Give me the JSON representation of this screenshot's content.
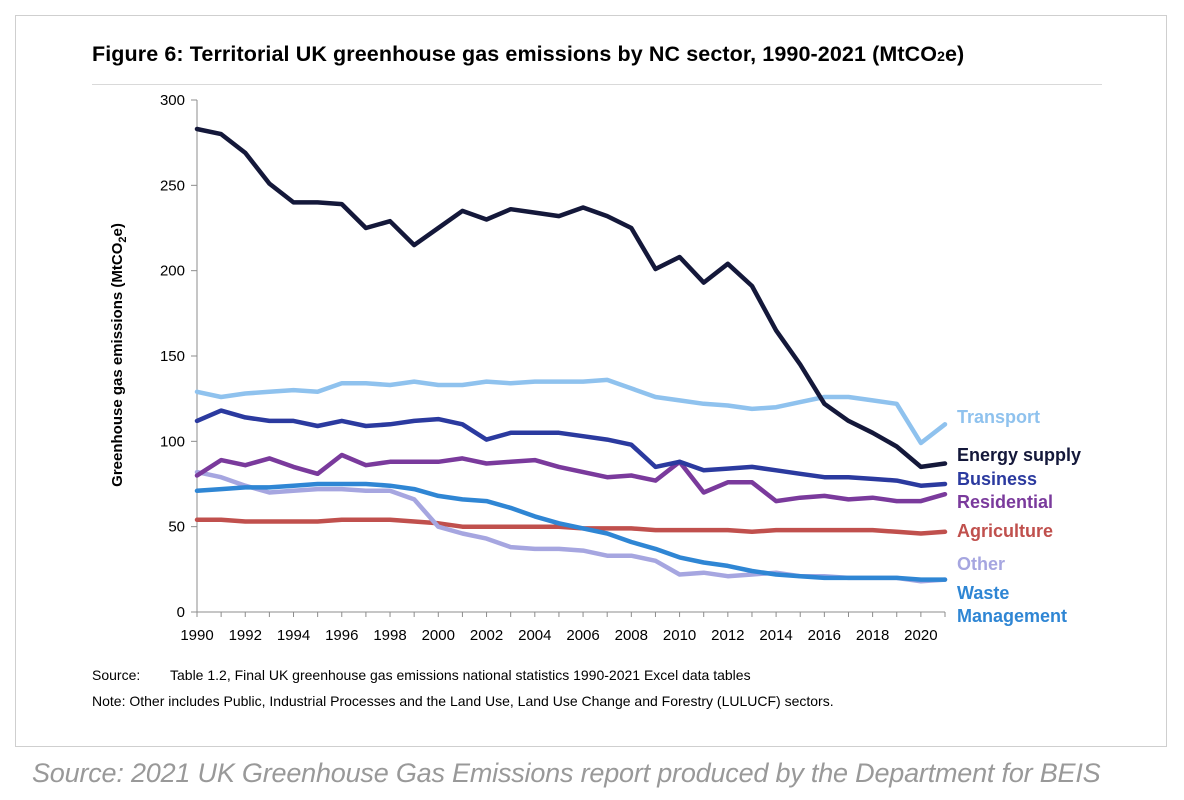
{
  "chart_data": {
    "type": "line",
    "title": "Figure 6: Territorial UK greenhouse gas emissions by NC sector, 1990-2021 (MtCO",
    "title_sub": "2",
    "title_tail": "e)",
    "ylabel": "Greenhouse gas emissions (MtCO",
    "ylabel_sub": "2",
    "ylabel_tail": "e)",
    "xlabel": "",
    "ylim": [
      0,
      300
    ],
    "xlim": [
      1990,
      2021
    ],
    "yticks": [
      0,
      50,
      100,
      150,
      200,
      250,
      300
    ],
    "xticks": [
      1990,
      1992,
      1994,
      1996,
      1998,
      2000,
      2002,
      2004,
      2006,
      2008,
      2010,
      2012,
      2014,
      2016,
      2018,
      2020
    ],
    "x": [
      1990,
      1991,
      1992,
      1993,
      1994,
      1995,
      1996,
      1997,
      1998,
      1999,
      2000,
      2001,
      2002,
      2003,
      2004,
      2005,
      2006,
      2007,
      2008,
      2009,
      2010,
      2011,
      2012,
      2013,
      2014,
      2015,
      2016,
      2017,
      2018,
      2019,
      2020,
      2021
    ],
    "series": [
      {
        "name": "Energy supply",
        "label_lines": [
          "Energy supply"
        ],
        "color": "#14183a",
        "values": [
          283,
          280,
          269,
          251,
          240,
          240,
          239,
          225,
          229,
          215,
          225,
          235,
          230,
          236,
          234,
          232,
          237,
          232,
          225,
          201,
          208,
          193,
          204,
          191,
          165,
          145,
          122,
          112,
          105,
          97,
          85,
          87
        ]
      },
      {
        "name": "Transport",
        "label_lines": [
          "Transport"
        ],
        "color": "#8fc2ee",
        "values": [
          129,
          126,
          128,
          129,
          130,
          129,
          134,
          134,
          133,
          135,
          133,
          133,
          135,
          134,
          135,
          135,
          135,
          136,
          131,
          126,
          124,
          122,
          121,
          119,
          120,
          123,
          126,
          126,
          124,
          122,
          99,
          110
        ]
      },
      {
        "name": "Business",
        "label_lines": [
          "Business"
        ],
        "color": "#2b3a9f",
        "values": [
          112,
          118,
          114,
          112,
          112,
          109,
          112,
          109,
          110,
          112,
          113,
          110,
          101,
          105,
          105,
          105,
          103,
          101,
          98,
          85,
          88,
          83,
          84,
          85,
          83,
          81,
          79,
          79,
          78,
          77,
          74,
          75
        ]
      },
      {
        "name": "Residential",
        "label_lines": [
          "Residential"
        ],
        "color": "#7a3a9c",
        "values": [
          80,
          89,
          86,
          90,
          85,
          81,
          92,
          86,
          88,
          88,
          88,
          90,
          87,
          88,
          89,
          85,
          82,
          79,
          80,
          77,
          88,
          70,
          76,
          76,
          65,
          67,
          68,
          66,
          67,
          65,
          65,
          69
        ]
      },
      {
        "name": "Agriculture",
        "label_lines": [
          "Agriculture"
        ],
        "color": "#c0504d",
        "values": [
          54,
          54,
          53,
          53,
          53,
          53,
          54,
          54,
          54,
          53,
          52,
          50,
          50,
          50,
          50,
          50,
          49,
          49,
          49,
          48,
          48,
          48,
          48,
          47,
          48,
          48,
          48,
          48,
          48,
          47,
          46,
          47
        ]
      },
      {
        "name": "Other",
        "label_lines": [
          "Other"
        ],
        "color": "#a6a6e0",
        "values": [
          82,
          79,
          74,
          70,
          71,
          72,
          72,
          71,
          71,
          66,
          50,
          46,
          43,
          38,
          37,
          37,
          36,
          33,
          33,
          30,
          22,
          23,
          21,
          22,
          23,
          21,
          21,
          20,
          20,
          20,
          18,
          19
        ]
      },
      {
        "name": "Waste Management",
        "label_lines": [
          "Waste",
          "Management"
        ],
        "color": "#2f86d4",
        "values": [
          71,
          72,
          73,
          73,
          74,
          75,
          75,
          75,
          74,
          72,
          68,
          66,
          65,
          61,
          56,
          52,
          49,
          46,
          41,
          37,
          32,
          29,
          27,
          24,
          22,
          21,
          20,
          20,
          20,
          20,
          19,
          19
        ]
      }
    ]
  },
  "source": {
    "label": "Source:",
    "text": "Table 1.2, Final UK greenhouse gas emissions national statistics 1990-2021 Excel data tables"
  },
  "note": "Note: Other includes Public, Industrial Processes and the Land Use, Land Use Change and Forestry (LULUCF) sectors.",
  "attribution": "Source: 2021 UK Greenhouse Gas Emissions report produced by the Department for BEIS"
}
